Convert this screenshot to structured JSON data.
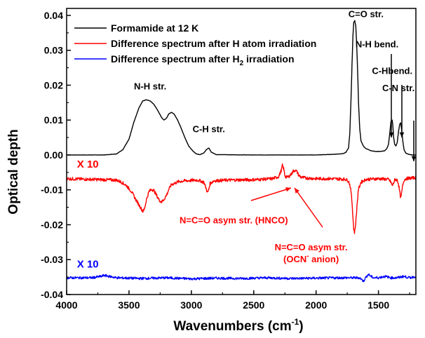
{
  "chart_data": {
    "type": "line",
    "xlabel": "Wavenumbers (cm",
    "xlabel_sup": "-1",
    "xlabel_end": ")",
    "ylabel": "Optical depth",
    "xlim": [
      4000,
      1200
    ],
    "ylim": [
      -0.04,
      0.042
    ],
    "x_reversed": true,
    "x_ticks": [
      4000,
      3500,
      3000,
      2500,
      2000,
      1500
    ],
    "x_tick_labels": [
      "4000",
      "3500",
      "3000",
      "2500",
      "2000",
      "1500"
    ],
    "y_ticks": [
      0.04,
      0.03,
      0.02,
      0.01,
      0.0,
      -0.01,
      -0.02,
      -0.03,
      -0.04
    ],
    "y_tick_labels": [
      "0.04",
      "0.03",
      "0.02",
      "0.01",
      "0.00",
      "-0.01",
      "-0.02",
      "-0.03",
      "-0.04"
    ],
    "legend_position": "top-right",
    "grid": false,
    "series": [
      {
        "name": "Formamide at 12 K",
        "color": "#000000",
        "x": [
          4000,
          3700,
          3600,
          3550,
          3500,
          3460,
          3420,
          3390,
          3360,
          3330,
          3300,
          3270,
          3240,
          3220,
          3200,
          3180,
          3160,
          3140,
          3110,
          3080,
          3050,
          3020,
          2990,
          2960,
          2930,
          2900,
          2880,
          2860,
          2840,
          2800,
          2500,
          2000,
          1850,
          1780,
          1760,
          1740,
          1730,
          1720,
          1712,
          1705,
          1698,
          1690,
          1682,
          1675,
          1667,
          1660,
          1650,
          1640,
          1620,
          1600,
          1560,
          1520,
          1480,
          1450,
          1430,
          1420,
          1410,
          1400,
          1390,
          1385,
          1378,
          1370,
          1360,
          1350,
          1340,
          1330,
          1322,
          1315,
          1305,
          1295,
          1280,
          1260,
          1230,
          1200
        ],
        "y": [
          0.0,
          0.0,
          0.0003,
          0.0015,
          0.0045,
          0.0095,
          0.0135,
          0.0155,
          0.0158,
          0.0155,
          0.0145,
          0.0128,
          0.0108,
          0.01,
          0.0105,
          0.0118,
          0.0122,
          0.0118,
          0.01,
          0.0075,
          0.0048,
          0.0025,
          0.0012,
          0.0003,
          0.0001,
          0.0006,
          0.0015,
          0.002,
          0.0008,
          0.0001,
          0.0,
          0.0,
          0.0002,
          0.0004,
          0.0008,
          0.002,
          0.006,
          0.016,
          0.026,
          0.034,
          0.038,
          0.0385,
          0.037,
          0.032,
          0.024,
          0.015,
          0.0075,
          0.004,
          0.0025,
          0.0018,
          0.0012,
          0.001,
          0.001,
          0.0012,
          0.002,
          0.003,
          0.006,
          0.0095,
          0.01,
          0.0085,
          0.005,
          0.003,
          0.0026,
          0.0035,
          0.0065,
          0.0088,
          0.0092,
          0.0075,
          0.004,
          0.0015,
          0.0005,
          0.0002,
          0.0,
          0.0
        ]
      },
      {
        "name": "Difference spectrum after H atom irradiation",
        "color": "#ff0000",
        "x": [
          4000,
          3800,
          3600,
          3560,
          3520,
          3480,
          3450,
          3420,
          3400,
          3390,
          3380,
          3370,
          3360,
          3340,
          3320,
          3300,
          3280,
          3260,
          3240,
          3225,
          3210,
          3195,
          3180,
          3160,
          3140,
          3100,
          3050,
          2950,
          2900,
          2880,
          2870,
          2860,
          2850,
          2820,
          2700,
          2500,
          2350,
          2300,
          2280,
          2270,
          2260,
          2250,
          2240,
          2220,
          2200,
          2180,
          2165,
          2150,
          2140,
          2120,
          2080,
          2000,
          1900,
          1800,
          1760,
          1740,
          1730,
          1720,
          1712,
          1705,
          1698,
          1692,
          1685,
          1678,
          1670,
          1660,
          1640,
          1600,
          1500,
          1420,
          1400,
          1390,
          1380,
          1370,
          1360,
          1350,
          1340,
          1330,
          1322,
          1315,
          1305,
          1295,
          1280,
          1260,
          1230,
          1200
        ],
        "y": [
          -0.0068,
          -0.007,
          -0.0072,
          -0.0078,
          -0.0088,
          -0.0105,
          -0.0125,
          -0.0143,
          -0.0155,
          -0.0162,
          -0.0158,
          -0.0145,
          -0.0128,
          -0.0105,
          -0.0098,
          -0.0102,
          -0.0115,
          -0.0128,
          -0.0135,
          -0.013,
          -0.0122,
          -0.0112,
          -0.0098,
          -0.0085,
          -0.0082,
          -0.0076,
          -0.0074,
          -0.0072,
          -0.0078,
          -0.0098,
          -0.0108,
          -0.0098,
          -0.0082,
          -0.0074,
          -0.0072,
          -0.0071,
          -0.0068,
          -0.0062,
          -0.0045,
          -0.003,
          -0.004,
          -0.0058,
          -0.0064,
          -0.0062,
          -0.0055,
          -0.0045,
          -0.0044,
          -0.005,
          -0.0058,
          -0.0064,
          -0.0066,
          -0.0068,
          -0.0068,
          -0.0069,
          -0.007,
          -0.0075,
          -0.0085,
          -0.0105,
          -0.0135,
          -0.0178,
          -0.0212,
          -0.0222,
          -0.0205,
          -0.0175,
          -0.0135,
          -0.0098,
          -0.0078,
          -0.007,
          -0.0068,
          -0.007,
          -0.0078,
          -0.0088,
          -0.0082,
          -0.0072,
          -0.007,
          -0.0072,
          -0.0082,
          -0.0105,
          -0.0125,
          -0.0112,
          -0.0085,
          -0.0072,
          -0.0068,
          -0.0067,
          -0.0066,
          -0.0065
        ]
      },
      {
        "name": "Difference spectrum after H",
        "name_sub": "2",
        "name_end": " irradiation",
        "color": "#0000ff",
        "x": [
          4000,
          3800,
          3720,
          3700,
          3600,
          3400,
          3200,
          3000,
          2800,
          2600,
          2400,
          2200,
          2000,
          1800,
          1650,
          1620,
          1600,
          1580,
          1560,
          1540,
          1500,
          1450,
          1400,
          1350,
          1300,
          1250,
          1200
        ],
        "y": [
          -0.0352,
          -0.0352,
          -0.0348,
          -0.0345,
          -0.0352,
          -0.0354,
          -0.0352,
          -0.0355,
          -0.0353,
          -0.0354,
          -0.0352,
          -0.0354,
          -0.0353,
          -0.0352,
          -0.0352,
          -0.0362,
          -0.035,
          -0.0342,
          -0.0348,
          -0.0352,
          -0.0352,
          -0.0348,
          -0.0352,
          -0.0352,
          -0.0348,
          -0.0352,
          -0.0348
        ]
      }
    ],
    "annotations": [
      {
        "text": "N-H str.",
        "color": "#000000",
        "x": 3330,
        "y": 0.0188
      },
      {
        "text": "C-H str.",
        "color": "#000000",
        "x": 2860,
        "y": 0.0065
      },
      {
        "text": "C=O str.",
        "color": "#000000",
        "x": 1600,
        "y": 0.0395
      },
      {
        "text": "N-H bend.",
        "color": "#000000",
        "x": 1512,
        "y": 0.0308
      },
      {
        "text": "C-Hbend.",
        "color": "#000000",
        "x": 1390,
        "y": 0.0232
      },
      {
        "text": "C-N str.",
        "color": "#000000",
        "x": 1340,
        "y": 0.0183
      },
      {
        "text": "X 10",
        "color": "#ff0000",
        "x": 3830,
        "y": -0.0036
      },
      {
        "text": "N=C=O asym str. (HNCO)",
        "color": "#ff0000",
        "x": 2660,
        "y": -0.0196
      },
      {
        "text": "N=C=O asym str.",
        "color": "#ff0000",
        "x": 2040,
        "y": -0.0273
      },
      {
        "text": "X 10",
        "color": "#0000ff",
        "x": 3830,
        "y": -0.0323
      }
    ],
    "ocn_label": {
      "prefix": "(OCN",
      "sup": "-",
      "suffix": " anion)",
      "color": "#ff0000",
      "x": 2040,
      "y": -0.0308
    }
  }
}
